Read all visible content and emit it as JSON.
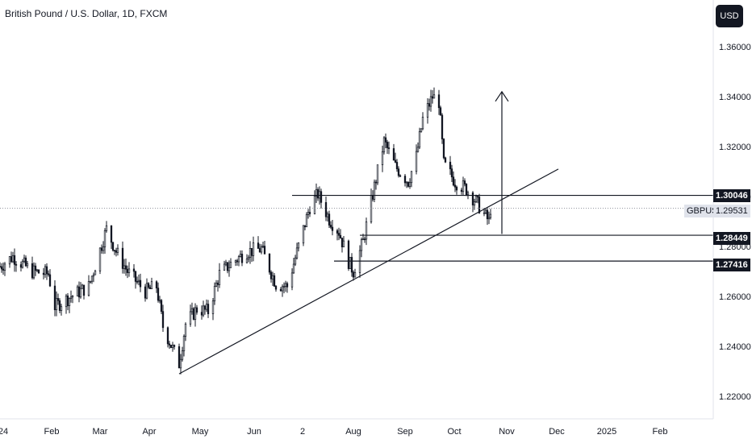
{
  "header": {
    "title": "British Pound / U.S. Dollar, 1D, FXCM"
  },
  "currency_button": "USD",
  "symbol": "GBPUSD",
  "last_price": "1.29531",
  "level_labels": [
    "1.30046",
    "1.28449",
    "1.27416"
  ],
  "colors": {
    "candles": "#131722",
    "lines": "#131722",
    "axis_text": "#131722",
    "badge_bg": "#131722",
    "symbol_tag_bg": "#e0e3eb"
  },
  "chart_data": {
    "type": "candlestick",
    "ylim": [
      1.214,
      1.374
    ],
    "y_ticks": [
      "1.36000",
      "1.34000",
      "1.32000",
      "1.30000",
      "1.28000",
      "1.26000",
      "1.24000",
      "1.22000"
    ],
    "x_ticks": [
      "24",
      "Feb",
      "Mar",
      "Apr",
      "May",
      "Jun",
      "2",
      "Aug",
      "Sep",
      "Oct",
      "Nov",
      "Dec",
      "2025",
      "Feb"
    ],
    "price_path": [
      [
        "2024-01-02",
        1.272
      ],
      [
        "2024-01-10",
        1.276
      ],
      [
        "2024-01-22",
        1.27
      ],
      [
        "2024-02-01",
        1.269
      ],
      [
        "2024-02-05",
        1.256
      ],
      [
        "2024-02-15",
        1.26
      ],
      [
        "2024-02-26",
        1.264
      ],
      [
        "2024-03-08",
        1.287
      ],
      [
        "2024-03-14",
        1.278
      ],
      [
        "2024-03-21",
        1.27
      ],
      [
        "2024-04-01",
        1.262
      ],
      [
        "2024-04-08",
        1.264
      ],
      [
        "2024-04-12",
        1.248
      ],
      [
        "2024-04-22",
        1.233
      ],
      [
        "2024-04-26",
        1.249
      ],
      [
        "2024-05-03",
        1.255
      ],
      [
        "2024-05-10",
        1.254
      ],
      [
        "2024-05-17",
        1.269
      ],
      [
        "2024-05-24",
        1.273
      ],
      [
        "2024-06-03",
        1.278
      ],
      [
        "2024-06-12",
        1.279
      ],
      [
        "2024-06-21",
        1.265
      ],
      [
        "2024-06-28",
        1.264
      ],
      [
        "2024-07-05",
        1.28
      ],
      [
        "2024-07-12",
        1.296
      ],
      [
        "2024-07-17",
        1.301
      ],
      [
        "2024-07-24",
        1.291
      ],
      [
        "2024-07-30",
        1.286
      ],
      [
        "2024-08-05",
        1.274
      ],
      [
        "2024-08-08",
        1.27
      ],
      [
        "2024-08-14",
        1.282
      ],
      [
        "2024-08-21",
        1.304
      ],
      [
        "2024-08-27",
        1.322
      ],
      [
        "2024-09-03",
        1.312
      ],
      [
        "2024-09-11",
        1.306
      ],
      [
        "2024-09-16",
        1.316
      ],
      [
        "2024-09-20",
        1.331
      ],
      [
        "2024-09-26",
        1.34
      ],
      [
        "2024-09-30",
        1.338
      ],
      [
        "2024-10-03",
        1.313
      ],
      [
        "2024-10-10",
        1.306
      ],
      [
        "2024-10-17",
        1.303
      ],
      [
        "2024-10-24",
        1.297
      ],
      [
        "2024-10-31",
        1.29
      ],
      [
        "2024-11-01",
        1.2953
      ]
    ],
    "annotations": {
      "horizontal_levels": [
        {
          "price": 1.30046,
          "from": "2024-07-01"
        },
        {
          "price": 1.28449,
          "from": "2024-08-12"
        },
        {
          "price": 1.27416,
          "from": "2024-07-27"
        }
      ],
      "trendline": {
        "from": [
          "2024-04-22",
          1.229
        ],
        "to": [
          "2024-12-13",
          1.311
        ]
      },
      "arrow": {
        "date": "2024-11-08",
        "from": 1.285,
        "to": 1.342
      },
      "current_price_line": 1.29531
    },
    "grid": false
  }
}
